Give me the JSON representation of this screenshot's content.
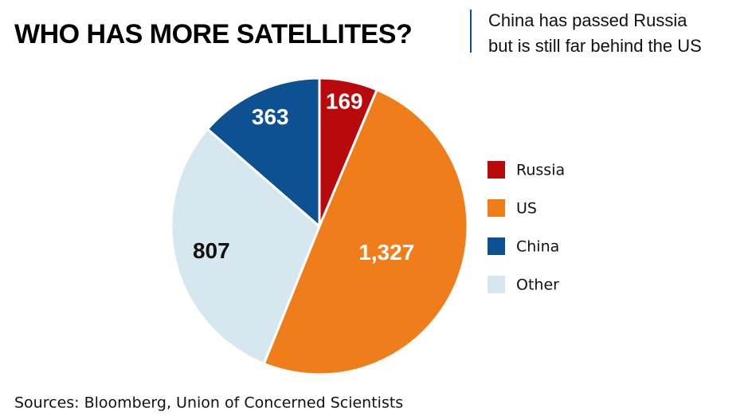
{
  "chart_data": {
    "type": "pie",
    "title": "WHO HAS MORE SATELLITES?",
    "subtitle": [
      "China has passed Russia",
      "but is still far behind the US"
    ],
    "source": "Sources: Bloomberg, Union of Concerned Scientists",
    "categories": [
      "Russia",
      "US",
      "Other",
      "China"
    ],
    "values": [
      169,
      1327,
      807,
      363
    ],
    "value_labels": [
      "169",
      "1,327",
      "807",
      "363"
    ],
    "colors": [
      "#b8090c",
      "#ef7d1a",
      "#d6e7ef",
      "#0d5192"
    ]
  }
}
